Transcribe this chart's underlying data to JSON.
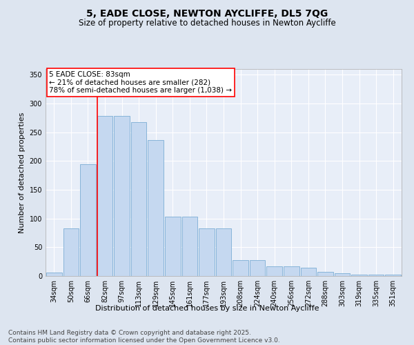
{
  "title": "5, EADE CLOSE, NEWTON AYCLIFFE, DL5 7QG",
  "subtitle": "Size of property relative to detached houses in Newton Aycliffe",
  "xlabel": "Distribution of detached houses by size in Newton Aycliffe",
  "ylabel": "Number of detached properties",
  "categories": [
    "34sqm",
    "50sqm",
    "66sqm",
    "82sqm",
    "97sqm",
    "113sqm",
    "129sqm",
    "145sqm",
    "161sqm",
    "177sqm",
    "193sqm",
    "208sqm",
    "224sqm",
    "240sqm",
    "256sqm",
    "272sqm",
    "288sqm",
    "303sqm",
    "319sqm",
    "335sqm",
    "351sqm"
  ],
  "bar_heights": [
    6,
    83,
    195,
    278,
    278,
    268,
    237,
    103,
    103,
    83,
    83,
    28,
    28,
    17,
    17,
    14,
    7,
    5,
    3,
    3,
    3
  ],
  "bar_color": "#c5d8f0",
  "bar_edgecolor": "#7aadd4",
  "ref_line_idx": 3,
  "annotation_title": "5 EADE CLOSE: 83sqm",
  "annotation_line1": "← 21% of detached houses are smaller (282)",
  "annotation_line2": "78% of semi-detached houses are larger (1,038) →",
  "ylim": [
    0,
    360
  ],
  "yticks": [
    0,
    50,
    100,
    150,
    200,
    250,
    300,
    350
  ],
  "footer_line1": "Contains HM Land Registry data © Crown copyright and database right 2025.",
  "footer_line2": "Contains public sector information licensed under the Open Government Licence v3.0.",
  "bg_color": "#dde5f0",
  "plot_bg_color": "#e8eef8",
  "grid_color": "#ffffff",
  "title_fontsize": 10,
  "subtitle_fontsize": 8.5,
  "axis_label_fontsize": 8,
  "tick_fontsize": 7,
  "annot_fontsize": 7.5,
  "footer_fontsize": 6.5
}
